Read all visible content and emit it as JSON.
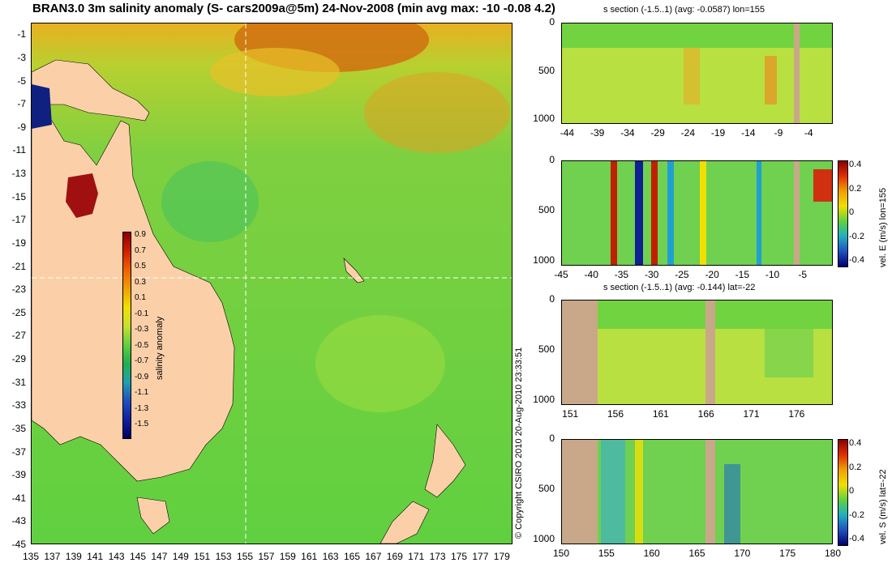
{
  "map": {
    "title": "BRAN3.0 3m salinity anomaly (S- cars2009a@5m) 24-Nov-2008 (min avg max: -10 -0.08 4.2)",
    "colorbar_label": "salinity anomaly",
    "colorbar_ticks": [
      "0.9",
      "0.7",
      "0.5",
      "0.3",
      "0.1",
      "-0.1",
      "-0.3",
      "-0.5",
      "-0.7",
      "-0.9",
      "-1.1",
      "-1.3",
      "-1.5"
    ],
    "copyright": "© Copyright CSIRO 2010   20-Aug-2010 23:33:51"
  },
  "panels": {
    "p1_title": "s section (-1.5..1) (avg: -0.0587) lon=155",
    "p3_title": "s section (-1.5..1) (avg: -0.144) lat=-22",
    "p2_cbar_label": "vel. E (m/s) lon=155",
    "p4_cbar_label": "vel. S (m/s) lat=-22",
    "vel_ticks": [
      "0.4",
      "0.2",
      "0",
      "-0.2",
      "-0.4"
    ]
  },
  "chart_data": [
    {
      "type": "heatmap",
      "title": "BRAN3.0 3m salinity anomaly (S- cars2009a@5m) 24-Nov-2008 (min avg max: -10 -0.08 4.2)",
      "xlim": [
        135,
        180
      ],
      "ylim": [
        -45,
        0
      ],
      "x_ticks": [
        135,
        137,
        139,
        141,
        143,
        145,
        147,
        149,
        151,
        153,
        155,
        157,
        159,
        161,
        163,
        165,
        167,
        169,
        171,
        173,
        175,
        177,
        179
      ],
      "y_ticks": [
        -1,
        -3,
        -5,
        -7,
        -9,
        -11,
        -13,
        -15,
        -17,
        -19,
        -21,
        -23,
        -25,
        -27,
        -29,
        -31,
        -33,
        -35,
        -37,
        -39,
        -41,
        -43,
        -45
      ],
      "colorbar": {
        "label": "salinity anomaly",
        "range": [
          -1.5,
          1
        ]
      },
      "stats": {
        "min": -10,
        "avg": -0.08,
        "max": 4.2
      },
      "section_lines": {
        "lon": 155,
        "lat": -22
      }
    },
    {
      "type": "heatmap",
      "title": "s section (-1.5..1) (avg: -0.0587) lon=155",
      "x_ticks": [
        -44,
        -39,
        -34,
        -29,
        -24,
        -19,
        -14,
        -9,
        -4
      ],
      "y_ticks": [
        0,
        500,
        1000
      ],
      "xlim": [
        -45,
        0
      ],
      "ylim": [
        1050,
        0
      ]
    },
    {
      "type": "heatmap",
      "x_ticks": [
        -45,
        -40,
        -35,
        -30,
        -25,
        -20,
        -15,
        -10,
        -5
      ],
      "y_ticks": [
        0,
        500,
        1000
      ],
      "xlim": [
        -45,
        0
      ],
      "ylim": [
        1050,
        0
      ],
      "colorbar": {
        "label": "vel. E (m/s) lon=155",
        "range": [
          -0.4,
          0.4
        ],
        "ticks": [
          0.4,
          0.2,
          0,
          -0.2,
          -0.4
        ]
      }
    },
    {
      "type": "heatmap",
      "title": "s section (-1.5..1) (avg: -0.144) lat=-22",
      "x_ticks": [
        151,
        156,
        161,
        166,
        171,
        176
      ],
      "y_ticks": [
        0,
        500,
        1000
      ],
      "xlim": [
        150,
        180
      ],
      "ylim": [
        1050,
        0
      ]
    },
    {
      "type": "heatmap",
      "x_ticks": [
        150,
        155,
        160,
        165,
        170,
        175,
        180
      ],
      "y_ticks": [
        0,
        500,
        1000
      ],
      "xlim": [
        150,
        180
      ],
      "ylim": [
        1050,
        0
      ],
      "colorbar": {
        "label": "vel. S (m/s) lat=-22",
        "range": [
          -0.4,
          0.4
        ],
        "ticks": [
          0.4,
          0.2,
          0,
          -0.2,
          -0.4
        ]
      }
    }
  ]
}
